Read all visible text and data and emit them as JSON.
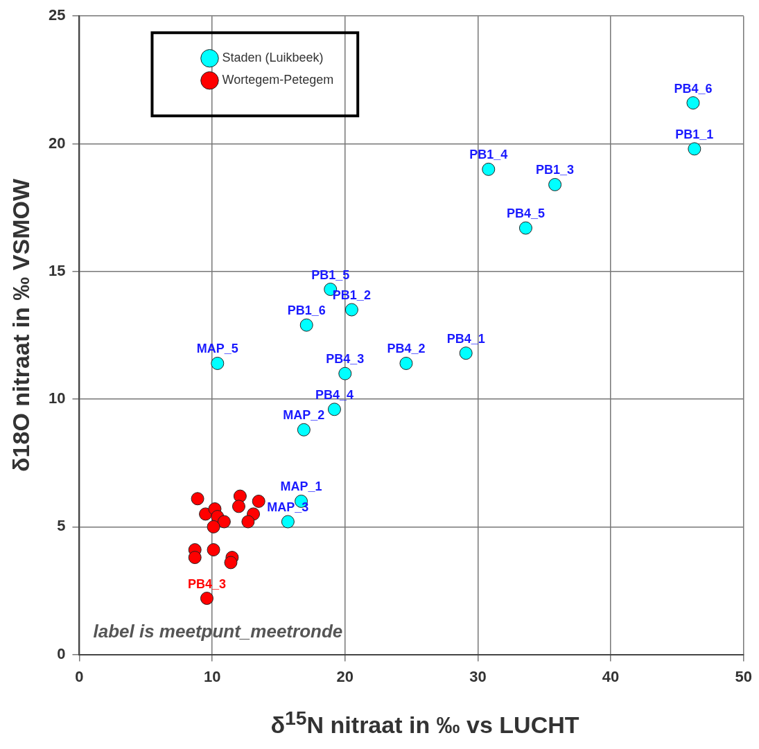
{
  "chart_data": {
    "type": "scatter",
    "xlabel": "δ$^{15}$N nitraat in ‰ vs LUCHT",
    "ylabel": "δ18O nitraat in ‰ VSMOW",
    "xlim": [
      0,
      50
    ],
    "xticks": [
      0,
      10,
      20,
      30,
      40,
      50
    ],
    "ylim": [
      0,
      25
    ],
    "yticks": [
      0,
      5,
      10,
      15,
      20,
      25
    ],
    "grid": true,
    "legend": "top left",
    "marker": "circle",
    "series": [
      {
        "name": "Staden (Luikbeek)",
        "color": "#00ffff",
        "x": [
          46.2,
          46.3,
          30.8,
          35.8,
          33.6,
          18.9,
          20.5,
          17.1,
          10.4,
          20.0,
          24.6,
          29.1,
          19.2,
          16.9,
          16.7,
          15.7
        ],
        "values": [
          21.6,
          19.8,
          19.0,
          18.4,
          16.7,
          14.3,
          13.5,
          12.9,
          11.4,
          11.0,
          11.4,
          11.8,
          9.6,
          8.8,
          6.0,
          5.2
        ]
      },
      {
        "name": "Wortegem-Petegem",
        "color": "#ff0000",
        "x": [
          8.9,
          9.5,
          10.2,
          10.4,
          10.9,
          10.1,
          12.1,
          12.0,
          13.5,
          13.1,
          12.7,
          8.7,
          8.7,
          10.1,
          11.5,
          11.4,
          9.6
        ],
        "values": [
          6.1,
          5.5,
          5.7,
          5.4,
          5.2,
          5.0,
          6.2,
          5.8,
          6.0,
          5.5,
          5.2,
          4.1,
          3.8,
          4.1,
          3.8,
          3.6,
          2.2
        ]
      }
    ],
    "annotations": [
      {
        "text": "PB4_6",
        "x": 46.2,
        "y": 21.6
      },
      {
        "text": "PB1_1",
        "x": 46.3,
        "y": 19.8
      },
      {
        "text": "PB1_4",
        "x": 30.8,
        "y": 19.0
      },
      {
        "text": "PB1_3",
        "x": 35.8,
        "y": 18.4
      },
      {
        "text": "PB4_5",
        "x": 33.6,
        "y": 16.7
      },
      {
        "text": "PB1_5",
        "x": 18.9,
        "y": 14.3
      },
      {
        "text": "PB1_2",
        "x": 20.5,
        "y": 13.5
      },
      {
        "text": "PB1_6",
        "x": 17.1,
        "y": 12.9
      },
      {
        "text": "MAP_5",
        "x": 10.4,
        "y": 11.4
      },
      {
        "text": "PB4_3",
        "x": 20.0,
        "y": 11.0
      },
      {
        "text": "PB4_2",
        "x": 24.6,
        "y": 11.4
      },
      {
        "text": "PB4_1",
        "x": 29.1,
        "y": 11.8
      },
      {
        "text": "PB4_4",
        "x": 19.2,
        "y": 9.6
      },
      {
        "text": "MAP_2",
        "x": 16.9,
        "y": 8.8
      },
      {
        "text": "MAP_1",
        "x": 16.7,
        "y": 6.0
      },
      {
        "text": "MAP_3",
        "x": 15.7,
        "y": 5.2
      },
      {
        "text": "PB4_3",
        "x": 9.6,
        "y": 2.2
      },
      "label is meetpunt_meetronde"
    ]
  }
}
